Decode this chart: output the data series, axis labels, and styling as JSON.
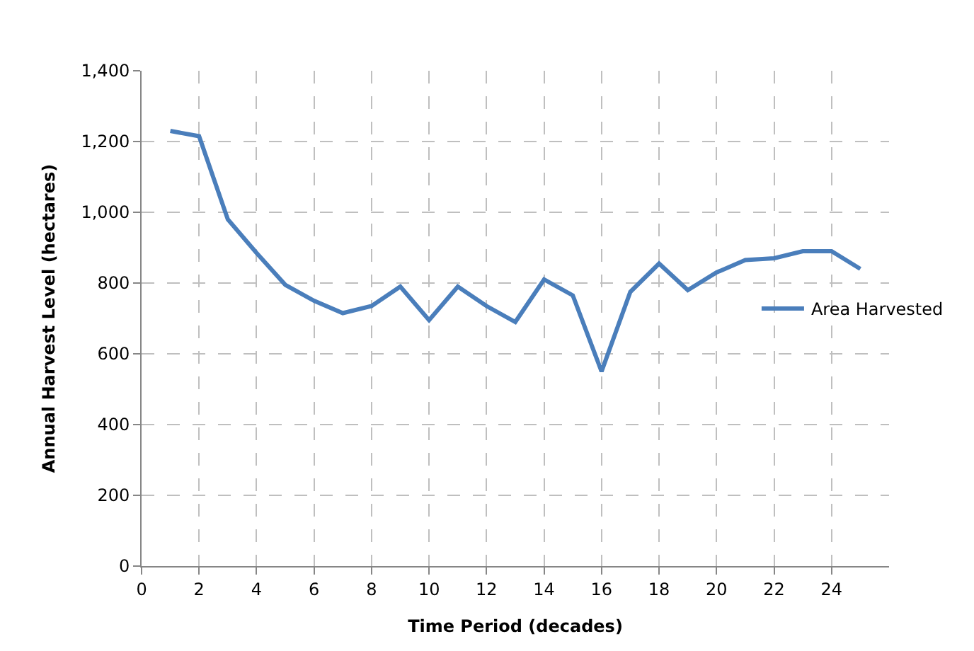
{
  "chart_data": {
    "type": "line",
    "xlabel": "Time Period (decades)",
    "ylabel": "Annual Harvest Level (hectares)",
    "x": [
      1,
      2,
      3,
      4,
      5,
      6,
      7,
      8,
      9,
      10,
      11,
      12,
      13,
      14,
      15,
      16,
      17,
      18,
      19,
      20,
      21,
      22,
      23,
      24,
      25
    ],
    "series": [
      {
        "name": "Area Harvested",
        "color": "#4a7ebb",
        "values": [
          1230,
          1215,
          980,
          885,
          795,
          750,
          715,
          735,
          790,
          695,
          790,
          735,
          690,
          810,
          765,
          550,
          775,
          855,
          780,
          830,
          865,
          870,
          890,
          890,
          840
        ]
      }
    ],
    "xlim": [
      0,
      26
    ],
    "xticks": [
      0,
      2,
      4,
      6,
      8,
      10,
      12,
      14,
      16,
      18,
      20,
      22,
      24
    ],
    "ylim": [
      0,
      1400
    ],
    "yticks": [
      0,
      {
        "value": 200,
        "label": "200"
      },
      {
        "value": 400,
        "label": "400"
      },
      {
        "value": 600,
        "label": "600"
      },
      {
        "value": 800,
        "label": "800"
      },
      {
        "value": 1000,
        "label": "1,000"
      },
      {
        "value": 1200,
        "label": "1,200"
      },
      {
        "value": 1400,
        "label": "1,400"
      }
    ],
    "grid": true,
    "legend": "right",
    "marker": "none",
    "line_style": "solid"
  }
}
